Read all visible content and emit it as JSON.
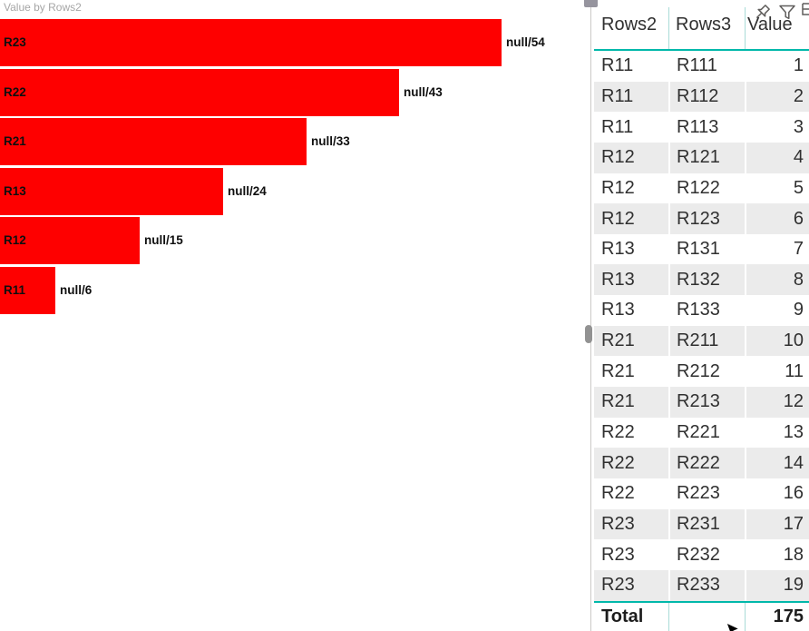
{
  "chart_data": {
    "type": "bar",
    "orientation": "horizontal",
    "title": "Value by Rows2",
    "categories": [
      "R23",
      "R22",
      "R21",
      "R13",
      "R12",
      "R11"
    ],
    "values": [
      54,
      43,
      33,
      24,
      15,
      6
    ],
    "data_labels": [
      "null/54",
      "null/43",
      "null/33",
      "null/24",
      "null/15",
      "null/6"
    ],
    "bar_color": "#fe0000",
    "xlim": [
      0,
      58
    ],
    "legend": "none",
    "grid": false
  },
  "table": {
    "headers": [
      "Rows2",
      "Rows3",
      "Value"
    ],
    "rows": [
      [
        "R11",
        "R111",
        "1"
      ],
      [
        "R11",
        "R112",
        "2"
      ],
      [
        "R11",
        "R113",
        "3"
      ],
      [
        "R12",
        "R121",
        "4"
      ],
      [
        "R12",
        "R122",
        "5"
      ],
      [
        "R12",
        "R123",
        "6"
      ],
      [
        "R13",
        "R131",
        "7"
      ],
      [
        "R13",
        "R132",
        "8"
      ],
      [
        "R13",
        "R133",
        "9"
      ],
      [
        "R21",
        "R211",
        "10"
      ],
      [
        "R21",
        "R212",
        "11"
      ],
      [
        "R21",
        "R213",
        "12"
      ],
      [
        "R22",
        "R221",
        "13"
      ],
      [
        "R22",
        "R222",
        "14"
      ],
      [
        "R22",
        "R223",
        "16"
      ],
      [
        "R23",
        "R231",
        "17"
      ],
      [
        "R23",
        "R232",
        "18"
      ],
      [
        "R23",
        "R233",
        "19"
      ]
    ],
    "total_label": "Total",
    "total_value": "175"
  },
  "visual_header_icons": [
    "pin",
    "filter",
    "clipped-edge"
  ],
  "colors": {
    "bar_red": "#fe0000",
    "accent_teal": "#01b8aa",
    "separator_teal": "#a9dbd7",
    "band_gray": "#ebebeb",
    "title_gray": "#a6a6a6",
    "text_dark": "#303030"
  }
}
